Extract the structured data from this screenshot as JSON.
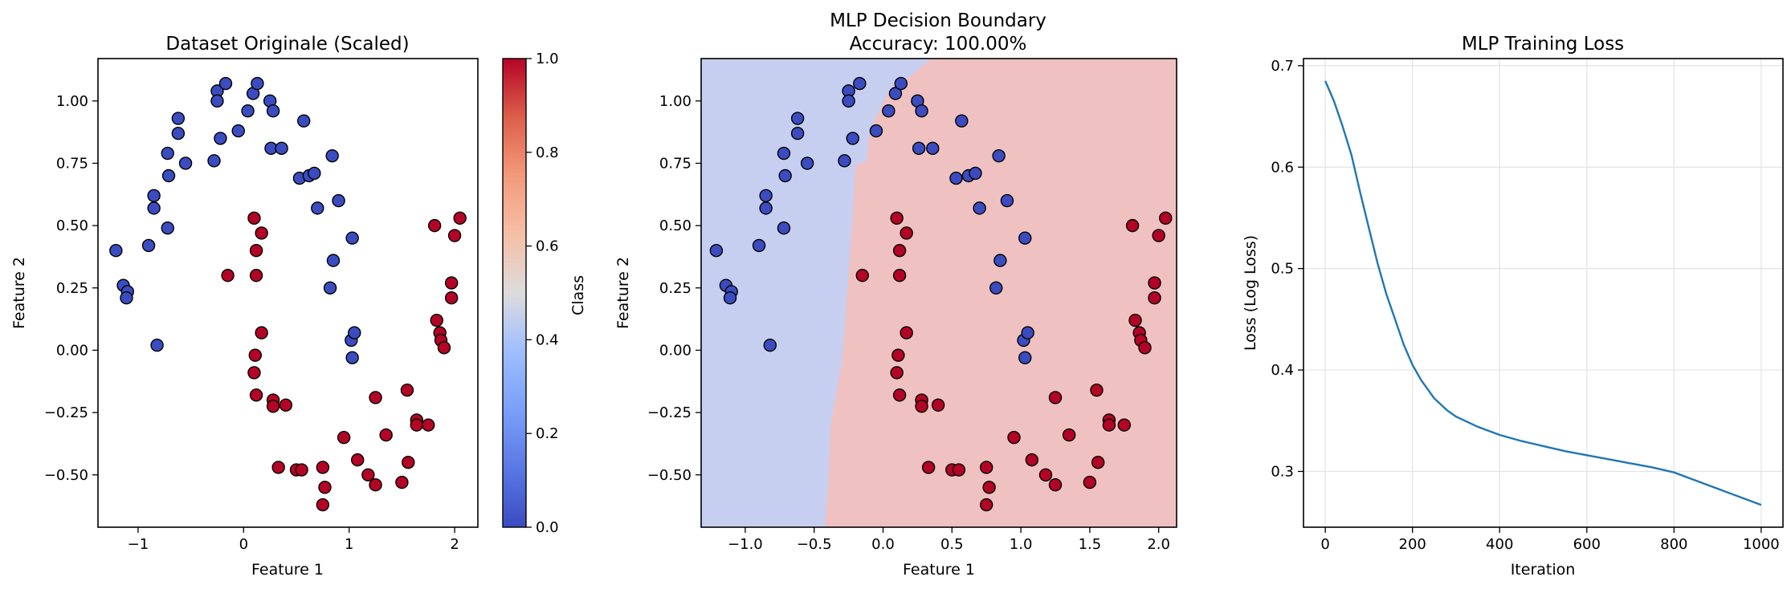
{
  "chart_data": [
    {
      "type": "scatter",
      "title": "Dataset Originale (Scaled)",
      "xlabel": "Feature 1",
      "ylabel": "Feature 2",
      "xlim": [
        -1.38,
        2.22
      ],
      "ylim": [
        -0.71,
        1.17
      ],
      "xticks": [
        -1,
        0,
        1,
        2
      ],
      "xticklabels": [
        "−1",
        "0",
        "1",
        "2"
      ],
      "yticks": [
        -0.5,
        -0.25,
        0,
        0.25,
        0.5,
        0.75,
        1.0
      ],
      "yticklabels": [
        "−0.50",
        "−0.25",
        "0.00",
        "0.25",
        "0.50",
        "0.75",
        "1.00"
      ],
      "grid": false,
      "colorbar": {
        "label": "Class",
        "range": [
          0,
          1
        ],
        "ticks": [
          "0.0",
          "0.2",
          "0.4",
          "0.6",
          "0.8",
          "1.0"
        ],
        "colormap": "coolwarm"
      },
      "series": [
        {
          "class": 0,
          "color": "#3b4cc0"
        },
        {
          "class": 1,
          "color": "#b40426"
        }
      ]
    },
    {
      "type": "scatter",
      "title": "MLP Decision Boundary",
      "subtitle": "Accuracy: 100.00%",
      "xlabel": "Feature 1",
      "ylabel": "Feature 2",
      "xlim": [
        -1.32,
        2.13
      ],
      "ylim": [
        -0.71,
        1.17
      ],
      "xticks": [
        -1,
        -0.5,
        0,
        0.5,
        1,
        1.5,
        2
      ],
      "xticklabels": [
        "−1.0",
        "−0.5",
        "0.0",
        "0.5",
        "1.0",
        "1.5",
        "2.0"
      ],
      "yticks": [
        -0.5,
        -0.25,
        0,
        0.25,
        0.5,
        0.75,
        1.0
      ],
      "yticklabels": [
        "−0.50",
        "−0.25",
        "0.00",
        "0.25",
        "0.50",
        "0.75",
        "1.00"
      ],
      "grid": false,
      "region_colors": {
        "class0": "#c6cff0",
        "class1": "#efc1c1"
      },
      "decision_boundary": [
        [
          -0.42,
          -0.71
        ],
        [
          -0.4,
          -0.55
        ],
        [
          -0.38,
          -0.3
        ],
        [
          -0.3,
          -0.05
        ],
        [
          -0.25,
          0.3
        ],
        [
          -0.22,
          0.55
        ],
        [
          -0.2,
          0.74
        ],
        [
          -0.12,
          0.76
        ],
        [
          -0.1,
          0.88
        ],
        [
          0.05,
          1.05
        ],
        [
          0.2,
          1.1
        ],
        [
          0.35,
          1.17
        ]
      ]
    },
    {
      "type": "line",
      "title": "MLP Training Loss",
      "xlabel": "Iteration",
      "ylabel": "Loss (Log Loss)",
      "xlim": [
        -50,
        1050
      ],
      "ylim": [
        0.245,
        0.707
      ],
      "xticks": [
        0,
        200,
        400,
        600,
        800,
        1000
      ],
      "yticks": [
        0.3,
        0.4,
        0.5,
        0.6,
        0.7
      ],
      "yticklabels": [
        "0.3",
        "0.4",
        "0.5",
        "0.6",
        "0.7"
      ],
      "grid": true,
      "line_color": "#1f77b4",
      "x": [
        0,
        20,
        40,
        60,
        80,
        100,
        120,
        140,
        160,
        180,
        200,
        220,
        250,
        280,
        300,
        350,
        400,
        450,
        500,
        550,
        600,
        650,
        700,
        750,
        800,
        850,
        900,
        950,
        1000
      ],
      "y": [
        0.685,
        0.665,
        0.64,
        0.612,
        0.575,
        0.54,
        0.505,
        0.475,
        0.45,
        0.425,
        0.405,
        0.39,
        0.372,
        0.36,
        0.354,
        0.344,
        0.336,
        0.33,
        0.325,
        0.32,
        0.316,
        0.312,
        0.308,
        0.304,
        0.299,
        0.291,
        0.283,
        0.275,
        0.267
      ]
    }
  ],
  "points": [
    {
      "x": -1.21,
      "y": 0.4,
      "c": 0
    },
    {
      "x": -1.14,
      "y": 0.26,
      "c": 0
    },
    {
      "x": -1.1,
      "y": 0.235,
      "c": 0
    },
    {
      "x": -1.11,
      "y": 0.21,
      "c": 0
    },
    {
      "x": -0.82,
      "y": 0.02,
      "c": 0
    },
    {
      "x": -0.9,
      "y": 0.42,
      "c": 0
    },
    {
      "x": -0.85,
      "y": 0.57,
      "c": 0
    },
    {
      "x": -0.85,
      "y": 0.62,
      "c": 0
    },
    {
      "x": -0.72,
      "y": 0.49,
      "c": 0
    },
    {
      "x": -0.71,
      "y": 0.7,
      "c": 0
    },
    {
      "x": -0.72,
      "y": 0.79,
      "c": 0
    },
    {
      "x": -0.62,
      "y": 0.87,
      "c": 0
    },
    {
      "x": -0.62,
      "y": 0.93,
      "c": 0
    },
    {
      "x": -0.55,
      "y": 0.75,
      "c": 0
    },
    {
      "x": -0.28,
      "y": 0.76,
      "c": 0
    },
    {
      "x": -0.25,
      "y": 1.04,
      "c": 0
    },
    {
      "x": -0.25,
      "y": 1.0,
      "c": 0
    },
    {
      "x": -0.22,
      "y": 0.85,
      "c": 0
    },
    {
      "x": -0.17,
      "y": 1.07,
      "c": 0
    },
    {
      "x": -0.05,
      "y": 0.88,
      "c": 0
    },
    {
      "x": 0.04,
      "y": 0.96,
      "c": 0
    },
    {
      "x": 0.09,
      "y": 1.03,
      "c": 0
    },
    {
      "x": 0.13,
      "y": 1.07,
      "c": 0
    },
    {
      "x": 0.25,
      "y": 1.0,
      "c": 0
    },
    {
      "x": 0.28,
      "y": 0.96,
      "c": 0
    },
    {
      "x": 0.26,
      "y": 0.81,
      "c": 0
    },
    {
      "x": 0.36,
      "y": 0.81,
      "c": 0
    },
    {
      "x": 0.57,
      "y": 0.92,
      "c": 0
    },
    {
      "x": 0.53,
      "y": 0.69,
      "c": 0
    },
    {
      "x": 0.62,
      "y": 0.7,
      "c": 0
    },
    {
      "x": 0.67,
      "y": 0.71,
      "c": 0
    },
    {
      "x": 0.7,
      "y": 0.57,
      "c": 0
    },
    {
      "x": 0.84,
      "y": 0.78,
      "c": 0
    },
    {
      "x": 0.9,
      "y": 0.6,
      "c": 0
    },
    {
      "x": 1.03,
      "y": 0.45,
      "c": 0
    },
    {
      "x": 0.85,
      "y": 0.36,
      "c": 0
    },
    {
      "x": 0.82,
      "y": 0.25,
      "c": 0
    },
    {
      "x": 1.02,
      "y": 0.04,
      "c": 0
    },
    {
      "x": 1.05,
      "y": 0.07,
      "c": 0
    },
    {
      "x": 1.03,
      "y": -0.03,
      "c": 0
    },
    {
      "x": 0.1,
      "y": 0.53,
      "c": 1
    },
    {
      "x": 0.17,
      "y": 0.47,
      "c": 1
    },
    {
      "x": 0.12,
      "y": 0.4,
      "c": 1
    },
    {
      "x": 0.12,
      "y": 0.3,
      "c": 1
    },
    {
      "x": -0.15,
      "y": 0.3,
      "c": 1
    },
    {
      "x": 0.17,
      "y": 0.07,
      "c": 1
    },
    {
      "x": 0.11,
      "y": -0.02,
      "c": 1
    },
    {
      "x": 0.1,
      "y": -0.09,
      "c": 1
    },
    {
      "x": 0.12,
      "y": -0.18,
      "c": 1
    },
    {
      "x": 0.28,
      "y": -0.2,
      "c": 1
    },
    {
      "x": 0.28,
      "y": -0.225,
      "c": 1
    },
    {
      "x": 0.4,
      "y": -0.22,
      "c": 1
    },
    {
      "x": 0.33,
      "y": -0.47,
      "c": 1
    },
    {
      "x": 0.5,
      "y": -0.48,
      "c": 1
    },
    {
      "x": 0.55,
      "y": -0.48,
      "c": 1
    },
    {
      "x": 0.75,
      "y": -0.47,
      "c": 1
    },
    {
      "x": 0.77,
      "y": -0.55,
      "c": 1
    },
    {
      "x": 0.75,
      "y": -0.62,
      "c": 1
    },
    {
      "x": 0.95,
      "y": -0.35,
      "c": 1
    },
    {
      "x": 1.08,
      "y": -0.44,
      "c": 1
    },
    {
      "x": 1.18,
      "y": -0.5,
      "c": 1
    },
    {
      "x": 1.25,
      "y": -0.54,
      "c": 1
    },
    {
      "x": 1.25,
      "y": -0.19,
      "c": 1
    },
    {
      "x": 1.35,
      "y": -0.34,
      "c": 1
    },
    {
      "x": 1.5,
      "y": -0.53,
      "c": 1
    },
    {
      "x": 1.56,
      "y": -0.45,
      "c": 1
    },
    {
      "x": 1.55,
      "y": -0.16,
      "c": 1
    },
    {
      "x": 1.64,
      "y": -0.28,
      "c": 1
    },
    {
      "x": 1.64,
      "y": -0.3,
      "c": 1
    },
    {
      "x": 1.75,
      "y": -0.3,
      "c": 1
    },
    {
      "x": 1.81,
      "y": 0.5,
      "c": 1
    },
    {
      "x": 1.83,
      "y": 0.12,
      "c": 1
    },
    {
      "x": 1.86,
      "y": 0.07,
      "c": 1
    },
    {
      "x": 1.87,
      "y": 0.04,
      "c": 1
    },
    {
      "x": 1.9,
      "y": 0.01,
      "c": 1
    },
    {
      "x": 1.97,
      "y": 0.27,
      "c": 1
    },
    {
      "x": 1.97,
      "y": 0.21,
      "c": 1
    },
    {
      "x": 2.0,
      "y": 0.46,
      "c": 1
    },
    {
      "x": 2.05,
      "y": 0.53,
      "c": 1
    }
  ]
}
